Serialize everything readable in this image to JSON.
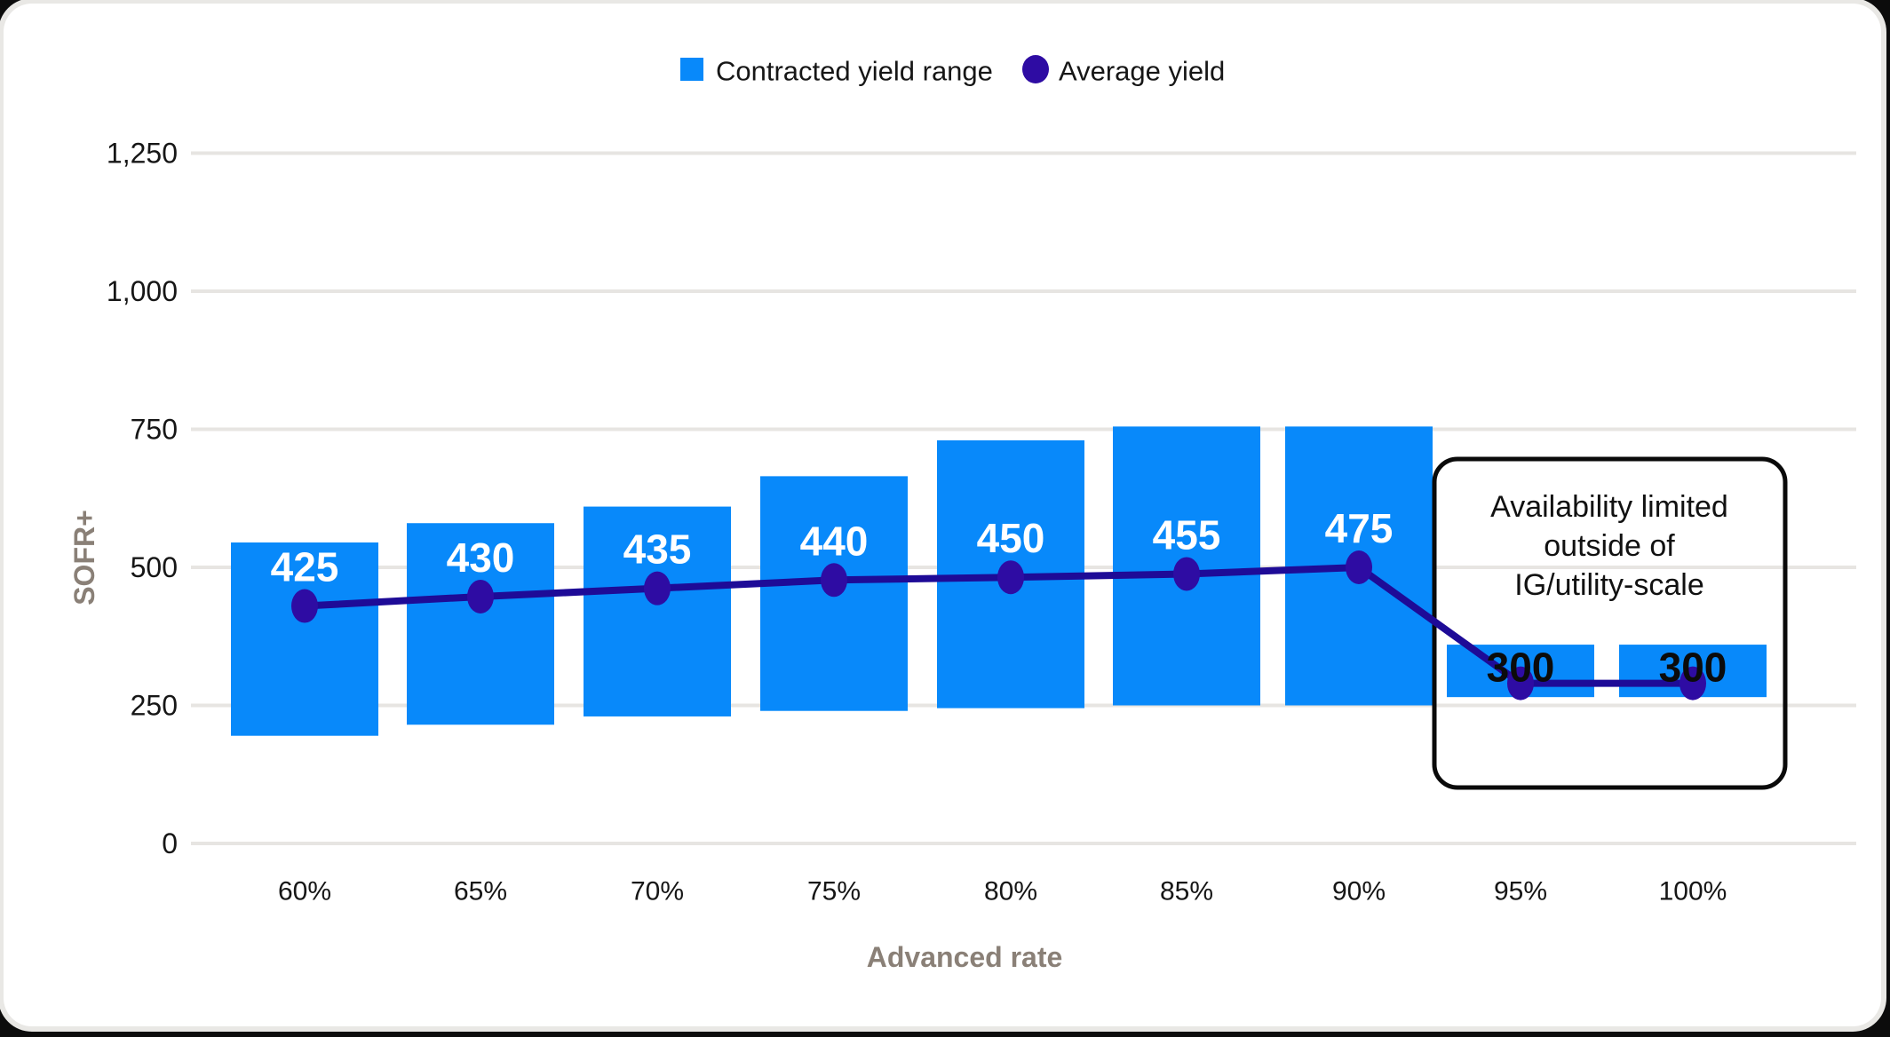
{
  "page": {
    "background": "#0c0c0c",
    "card_background": "#ffffff"
  },
  "colors": {
    "bar": "#0889FA",
    "dot": "#2E0CA3",
    "line": "#1E0B97",
    "grid": "#E7E5E2",
    "tick_text": "#161616",
    "axis_title": "#8A8077",
    "bar_label_light": "#FFFFFF",
    "bar_label_dark": "#0B0B0B",
    "annotation_border": "#0A0A0A",
    "annotation_text": "#111111"
  },
  "legend": {
    "items": [
      {
        "label": "Contracted yield range",
        "swatch": "square",
        "color": "#0889FA"
      },
      {
        "label": "Average yield",
        "swatch": "circle",
        "color": "#2E0CA3"
      }
    ]
  },
  "chart_data": {
    "type": "bar",
    "subtype": "floating-range-bars-with-line-overlay",
    "title": "",
    "categories": [
      "60%",
      "65%",
      "70%",
      "75%",
      "80%",
      "85%",
      "90%",
      "95%",
      "100%"
    ],
    "xlabel": "Advanced rate",
    "ylabel": "SOFR+",
    "y_ticks": [
      "0",
      "250",
      "500",
      "750",
      "1,000",
      "1,250"
    ],
    "y_tick_values": [
      0,
      250,
      500,
      750,
      1000,
      1250
    ],
    "ylim": [
      0,
      1350
    ],
    "grid": "horizontal",
    "legend_position": "top-center",
    "series": [
      {
        "name": "Contracted yield range",
        "type": "range-bar",
        "color": "#0889FA",
        "low": [
          195,
          215,
          230,
          240,
          245,
          250,
          250,
          265,
          265
        ],
        "high": [
          545,
          580,
          610,
          665,
          730,
          755,
          755,
          360,
          360
        ]
      },
      {
        "name": "Average yield",
        "type": "line",
        "color": "#2E0CA3",
        "line_color": "#1E0B97",
        "values": [
          425,
          430,
          435,
          440,
          450,
          455,
          475,
          300,
          300
        ],
        "labels": [
          "425",
          "430",
          "435",
          "440",
          "450",
          "455",
          "475",
          "300",
          "300"
        ],
        "plot_values": [
          430,
          447,
          462,
          477,
          482,
          488,
          500,
          290,
          290
        ]
      }
    ],
    "annotation": {
      "lines": [
        "Availability limited",
        "outside of",
        "IG/utility-scale"
      ],
      "applies_to": [
        "95%",
        "100%"
      ]
    }
  }
}
